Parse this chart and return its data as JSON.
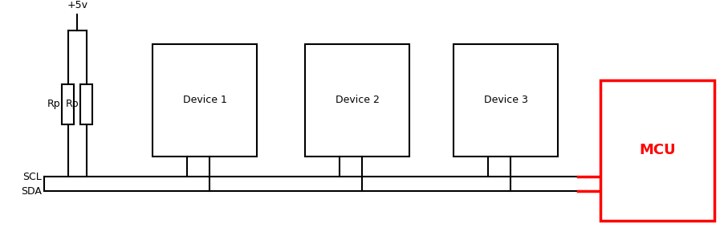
{
  "bg_color": "#ffffff",
  "line_color": "#000000",
  "red_color": "#ff0000",
  "vcc_label": "+5v",
  "scl_label": "SCL",
  "sda_label": "SDA",
  "mcu_label": "MCU",
  "rp1_label": "Rp",
  "rp2_label": "Rp",
  "device_labels": [
    "Device 1",
    "Device 2",
    "Device 3"
  ],
  "figsize": [
    9.03,
    3.04
  ],
  "dpi": 100,
  "xlim": [
    0,
    903
  ],
  "ylim": [
    0,
    304
  ]
}
